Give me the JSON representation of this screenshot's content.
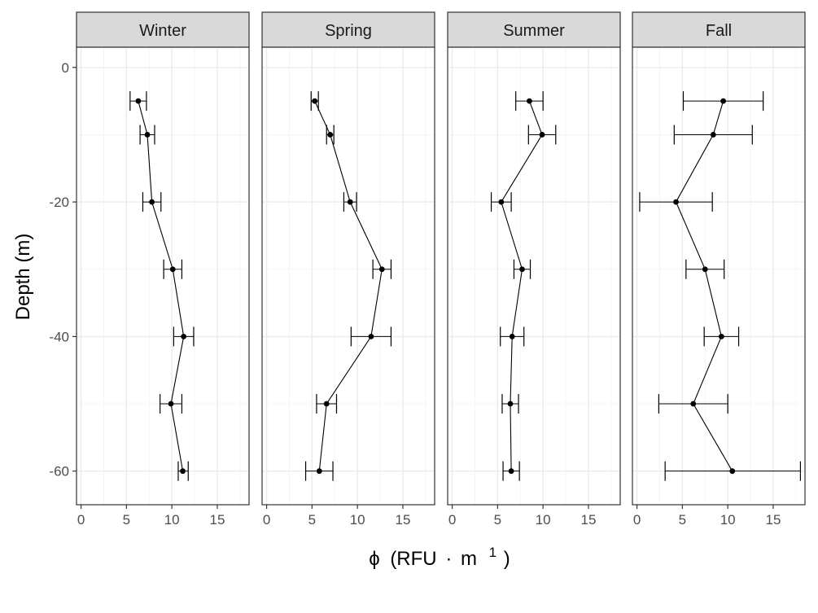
{
  "chart_data": {
    "type": "line",
    "facets": [
      "Winter",
      "Spring",
      "Summer",
      "Fall"
    ],
    "xlabel": {
      "symbol": "ϕ",
      "unit": "(RFU",
      "dot": "·",
      "unit2": "m",
      "sup": "1",
      "close": ")"
    },
    "ylabel": "Depth (m)",
    "xlim": [
      -0.5,
      18.5
    ],
    "ylim": [
      -65,
      3
    ],
    "x_ticks": [
      0,
      5,
      10,
      15
    ],
    "y_ticks": [
      0,
      -20,
      -40,
      -60
    ],
    "grid": true,
    "series": [
      {
        "facet": "Winter",
        "points": [
          {
            "depth": -5,
            "x": 6.3,
            "xmin": 5.4,
            "xmax": 7.2
          },
          {
            "depth": -10,
            "x": 7.3,
            "xmin": 6.5,
            "xmax": 8.1
          },
          {
            "depth": -20,
            "x": 7.8,
            "xmin": 6.8,
            "xmax": 8.8
          },
          {
            "depth": -30,
            "x": 10.1,
            "xmin": 9.1,
            "xmax": 11.1
          },
          {
            "depth": -40,
            "x": 11.3,
            "xmin": 10.2,
            "xmax": 12.4
          },
          {
            "depth": -50,
            "x": 9.9,
            "xmin": 8.7,
            "xmax": 11.1
          },
          {
            "depth": -60,
            "x": 11.2,
            "xmin": 10.7,
            "xmax": 11.8
          }
        ]
      },
      {
        "facet": "Spring",
        "points": [
          {
            "depth": -5,
            "x": 5.3,
            "xmin": 4.9,
            "xmax": 5.7
          },
          {
            "depth": -10,
            "x": 7.0,
            "xmin": 6.6,
            "xmax": 7.4
          },
          {
            "depth": -20,
            "x": 9.2,
            "xmin": 8.5,
            "xmax": 9.9
          },
          {
            "depth": -30,
            "x": 12.7,
            "xmin": 11.7,
            "xmax": 13.7
          },
          {
            "depth": -40,
            "x": 11.5,
            "xmin": 9.3,
            "xmax": 13.7
          },
          {
            "depth": -50,
            "x": 6.6,
            "xmin": 5.5,
            "xmax": 7.7
          },
          {
            "depth": -60,
            "x": 5.8,
            "xmin": 4.3,
            "xmax": 7.3
          }
        ]
      },
      {
        "facet": "Summer",
        "points": [
          {
            "depth": -5,
            "x": 8.5,
            "xmin": 7.0,
            "xmax": 10.0
          },
          {
            "depth": -10,
            "x": 9.9,
            "xmin": 8.4,
            "xmax": 11.4
          },
          {
            "depth": -20,
            "x": 5.4,
            "xmin": 4.3,
            "xmax": 6.5
          },
          {
            "depth": -30,
            "x": 7.7,
            "xmin": 6.8,
            "xmax": 8.6
          },
          {
            "depth": -40,
            "x": 6.6,
            "xmin": 5.3,
            "xmax": 7.9
          },
          {
            "depth": -50,
            "x": 6.4,
            "xmin": 5.5,
            "xmax": 7.3
          },
          {
            "depth": -60,
            "x": 6.5,
            "xmin": 5.6,
            "xmax": 7.4
          }
        ]
      },
      {
        "facet": "Fall",
        "points": [
          {
            "depth": -5,
            "x": 9.5,
            "xmin": 5.1,
            "xmax": 13.9
          },
          {
            "depth": -10,
            "x": 8.4,
            "xmin": 4.1,
            "xmax": 12.7
          },
          {
            "depth": -20,
            "x": 4.3,
            "xmin": 0.3,
            "xmax": 8.3
          },
          {
            "depth": -30,
            "x": 7.5,
            "xmin": 5.4,
            "xmax": 9.6
          },
          {
            "depth": -40,
            "x": 9.3,
            "xmin": 7.4,
            "xmax": 11.2
          },
          {
            "depth": -50,
            "x": 6.2,
            "xmin": 2.4,
            "xmax": 10.0
          },
          {
            "depth": -60,
            "x": 10.5,
            "xmin": 3.1,
            "xmax": 18.0
          }
        ]
      }
    ]
  }
}
